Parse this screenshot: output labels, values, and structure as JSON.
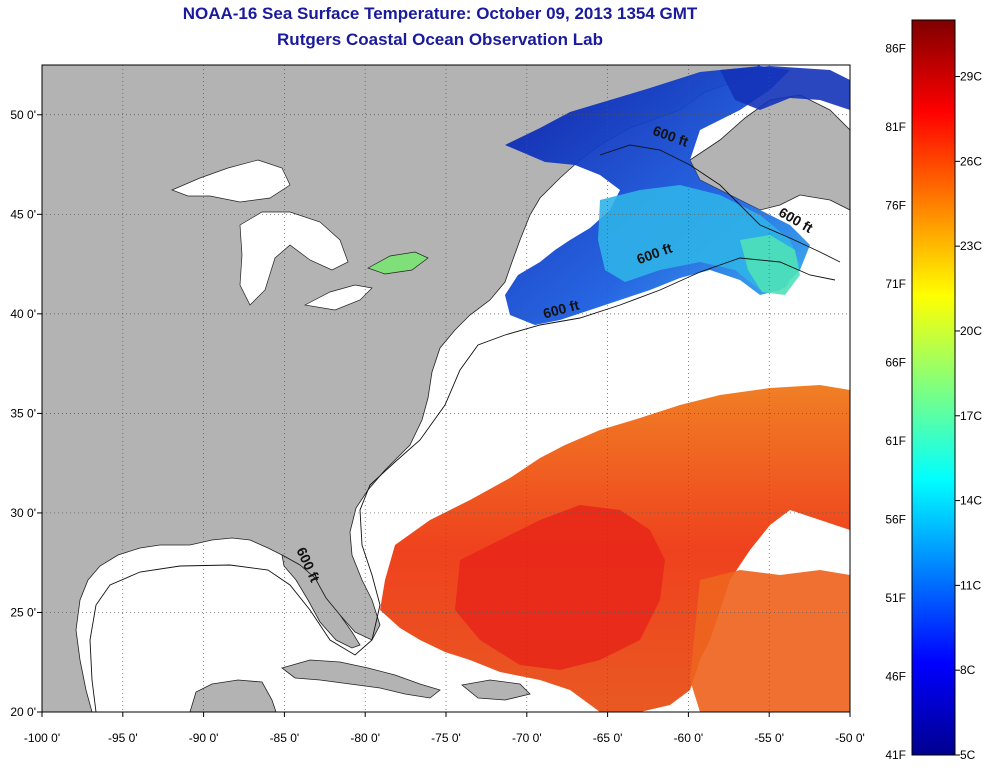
{
  "title": "NOAA-16 Sea Surface Temperature:  October 09, 2013 1354 GMT",
  "subtitle": "Rutgers Coastal Ocean Observation Lab",
  "map": {
    "lon_range": [
      -100,
      -50
    ],
    "lat_range": [
      20,
      52.5
    ],
    "lon_ticks": [
      {
        "lon": -100,
        "label": "-100 0'"
      },
      {
        "lon": -95,
        "label": "-95 0'"
      },
      {
        "lon": -90,
        "label": "-90 0'"
      },
      {
        "lon": -85,
        "label": "-85 0'"
      },
      {
        "lon": -80,
        "label": "-80 0'"
      },
      {
        "lon": -75,
        "label": "-75 0'"
      },
      {
        "lon": -70,
        "label": "-70 0'"
      },
      {
        "lon": -65,
        "label": "-65 0'"
      },
      {
        "lon": -60,
        "label": "-60 0'"
      },
      {
        "lon": -55,
        "label": "-55 0'"
      },
      {
        "lon": -50,
        "label": "-50 0'"
      }
    ],
    "lat_ticks": [
      {
        "lat": 20,
        "label": "20 0'"
      },
      {
        "lat": 25,
        "label": "25 0'"
      },
      {
        "lat": 30,
        "label": "30 0'"
      },
      {
        "lat": 35,
        "label": "35 0'"
      },
      {
        "lat": 40,
        "label": "40 0'"
      },
      {
        "lat": 45,
        "label": "45 0'"
      },
      {
        "lat": 50,
        "label": "50 0'"
      }
    ],
    "isobath_labels": [
      {
        "text": "600 ft",
        "lon": -61.2,
        "lat": 48.7,
        "rotate": 20
      },
      {
        "text": "600 ft",
        "lon": -53.5,
        "lat": 44.5,
        "rotate": 30
      },
      {
        "text": "600 ft",
        "lon": -62.0,
        "lat": 42.8,
        "rotate": -20
      },
      {
        "text": "600 ft",
        "lon": -67.8,
        "lat": 40.0,
        "rotate": -15
      },
      {
        "text": "600 ft",
        "lon": -83.8,
        "lat": 27.3,
        "rotate": 65
      }
    ],
    "colors": {
      "land": "#b3b3b3",
      "ocean": "#ffffff"
    }
  },
  "colorbar": {
    "min_c": 5,
    "max_c": 31,
    "f_labels": [
      "41F",
      "46F",
      "51F",
      "56F",
      "61F",
      "66F",
      "71F",
      "76F",
      "81F",
      "86F"
    ],
    "c_labels": [
      "5C",
      "8C",
      "11C",
      "14C",
      "17C",
      "20C",
      "23C",
      "26C",
      "29C"
    ]
  }
}
